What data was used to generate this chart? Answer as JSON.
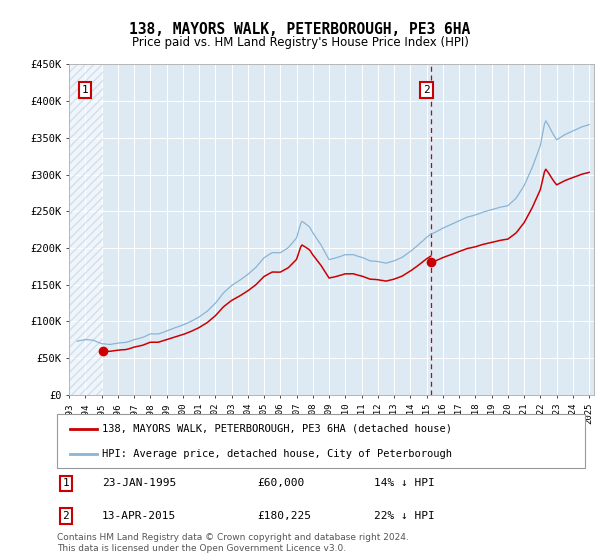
{
  "title": "138, MAYORS WALK, PETERBOROUGH, PE3 6HA",
  "subtitle": "Price paid vs. HM Land Registry's House Price Index (HPI)",
  "ylim": [
    0,
    450000
  ],
  "yticks": [
    0,
    50000,
    100000,
    150000,
    200000,
    250000,
    300000,
    350000,
    400000,
    450000
  ],
  "ytick_labels": [
    "£0",
    "£50K",
    "£100K",
    "£150K",
    "£200K",
    "£250K",
    "£300K",
    "£350K",
    "£400K",
    "£450K"
  ],
  "sale1_date": 1995.07,
  "sale1_price": 60000,
  "sale2_date": 2015.28,
  "sale2_price": 180225,
  "hpi_color": "#8ab4d4",
  "price_color": "#cc0000",
  "bg_color": "#ddeaf4",
  "hatch_color": "#b8cfe0",
  "legend_label1": "138, MAYORS WALK, PETERBOROUGH, PE3 6HA (detached house)",
  "legend_label2": "HPI: Average price, detached house, City of Peterborough",
  "note1_date": "23-JAN-1995",
  "note1_price": "£60,000",
  "note1_hpi": "14% ↓ HPI",
  "note2_date": "13-APR-2015",
  "note2_price": "£180,225",
  "note2_hpi": "22% ↓ HPI",
  "footer": "Contains HM Land Registry data © Crown copyright and database right 2024.\nThis data is licensed under the Open Government Licence v3.0."
}
